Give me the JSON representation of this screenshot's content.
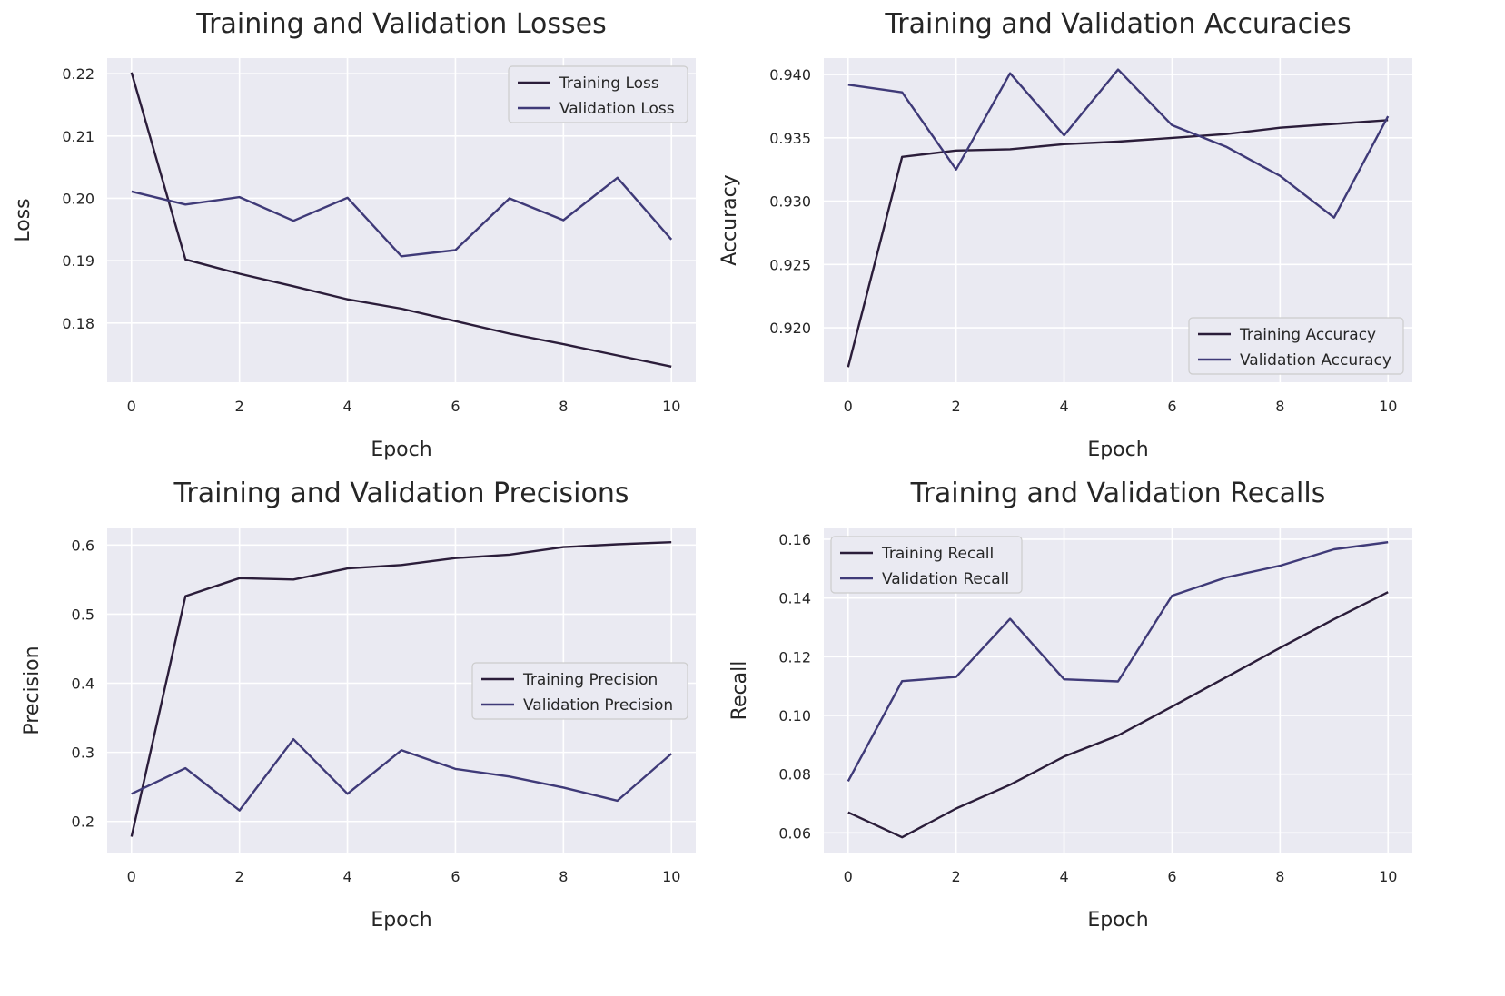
{
  "chart_data": [
    {
      "type": "line",
      "title": "Training and Validation Losses",
      "xlabel": "Epoch",
      "ylabel": "Loss",
      "x": [
        0,
        1,
        2,
        3,
        4,
        5,
        6,
        7,
        8,
        9,
        10
      ],
      "xlim": [
        -0.45,
        10.45
      ],
      "ylim": [
        0.1705,
        0.2225
      ],
      "xticks": [
        "0",
        "2",
        "4",
        "6",
        "8",
        "10"
      ],
      "yticks": [
        "0.18",
        "0.19",
        "0.20",
        "0.21",
        "0.22"
      ],
      "grid": true,
      "legend_position": "upper right",
      "series": [
        {
          "name": "Training Loss",
          "color": "#2b1d3a",
          "values": [
            0.2202,
            0.1902,
            0.1879,
            0.1859,
            0.1838,
            0.1823,
            0.1803,
            0.1783,
            0.1766,
            0.1748,
            0.173
          ]
        },
        {
          "name": "Validation Loss",
          "color": "#3f3a78",
          "values": [
            0.2011,
            0.199,
            0.2002,
            0.1964,
            0.2001,
            0.1907,
            0.1917,
            0.2,
            0.1965,
            0.2033,
            0.1934
          ]
        }
      ]
    },
    {
      "type": "line",
      "title": "Training and Validation Accuracies",
      "xlabel": "Epoch",
      "ylabel": "Accuracy",
      "x": [
        0,
        1,
        2,
        3,
        4,
        5,
        6,
        7,
        8,
        9,
        10
      ],
      "xlim": [
        -0.45,
        10.45
      ],
      "ylim": [
        0.9157,
        0.9413
      ],
      "xticks": [
        "0",
        "2",
        "4",
        "6",
        "8",
        "10"
      ],
      "yticks": [
        "0.920",
        "0.925",
        "0.930",
        "0.935",
        "0.940"
      ],
      "grid": true,
      "legend_position": "lower right",
      "series": [
        {
          "name": "Training Accuracy",
          "color": "#2b1d3a",
          "values": [
            0.9169,
            0.9335,
            0.934,
            0.9341,
            0.9345,
            0.9347,
            0.935,
            0.9353,
            0.9358,
            0.9361,
            0.9364
          ]
        },
        {
          "name": "Validation Accuracy",
          "color": "#3f3a78",
          "values": [
            0.9392,
            0.9386,
            0.9325,
            0.9401,
            0.9352,
            0.9404,
            0.936,
            0.9343,
            0.932,
            0.9287,
            0.9367
          ]
        }
      ]
    },
    {
      "type": "line",
      "title": "Training and Validation Precisions",
      "xlabel": "Epoch",
      "ylabel": "Precision",
      "x": [
        0,
        1,
        2,
        3,
        4,
        5,
        6,
        7,
        8,
        9,
        10
      ],
      "xlim": [
        -0.45,
        10.45
      ],
      "ylim": [
        0.155,
        0.624
      ],
      "xticks": [
        "0",
        "2",
        "4",
        "6",
        "8",
        "10"
      ],
      "yticks": [
        "0.2",
        "0.3",
        "0.4",
        "0.5",
        "0.6"
      ],
      "grid": true,
      "legend_position": "center right",
      "series": [
        {
          "name": "Training Precision",
          "color": "#2b1d3a",
          "values": [
            0.178,
            0.526,
            0.552,
            0.55,
            0.566,
            0.571,
            0.581,
            0.586,
            0.597,
            0.601,
            0.604
          ]
        },
        {
          "name": "Validation Precision",
          "color": "#3f3a78",
          "values": [
            0.24,
            0.277,
            0.216,
            0.319,
            0.24,
            0.303,
            0.276,
            0.265,
            0.249,
            0.23,
            0.298
          ]
        }
      ]
    },
    {
      "type": "line",
      "title": "Training and Validation Recalls",
      "xlabel": "Epoch",
      "ylabel": "Recall",
      "x": [
        0,
        1,
        2,
        3,
        4,
        5,
        6,
        7,
        8,
        9,
        10
      ],
      "xlim": [
        -0.45,
        10.45
      ],
      "ylim": [
        0.0533,
        0.1637
      ],
      "xticks": [
        "0",
        "2",
        "4",
        "6",
        "8",
        "10"
      ],
      "yticks": [
        "0.06",
        "0.08",
        "0.10",
        "0.12",
        "0.14",
        "0.16"
      ],
      "grid": true,
      "legend_position": "upper left",
      "series": [
        {
          "name": "Training Recall",
          "color": "#2b1d3a",
          "values": [
            0.067,
            0.0585,
            0.0683,
            0.0764,
            0.086,
            0.0932,
            0.103,
            0.113,
            0.123,
            0.1328,
            0.142
          ]
        },
        {
          "name": "Validation Recall",
          "color": "#3f3a78",
          "values": [
            0.0776,
            0.1117,
            0.1131,
            0.1329,
            0.1123,
            0.1116,
            0.1408,
            0.147,
            0.151,
            0.1566,
            0.159
          ]
        }
      ]
    }
  ]
}
